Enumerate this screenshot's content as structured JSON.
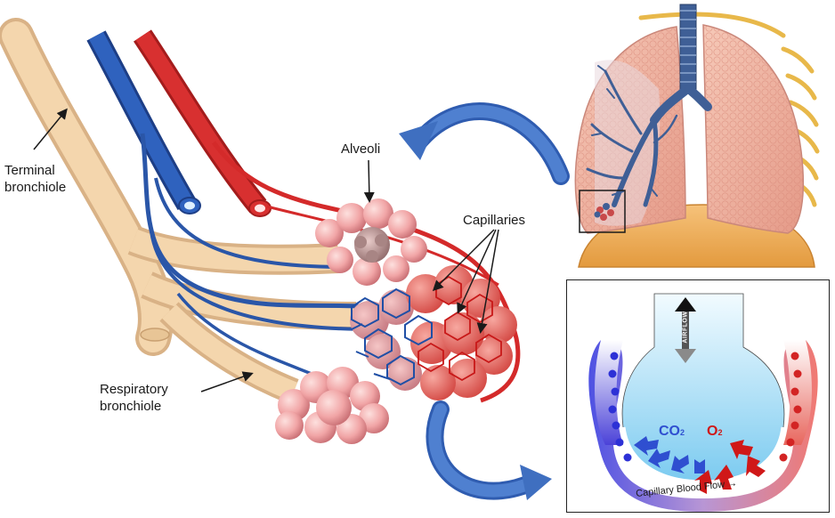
{
  "labels": {
    "terminal_bronchiole": "Terminal\nbronchiole",
    "alveoli": "Alveoli",
    "capillaries": "Capillaries",
    "respiratory_bronchiole": "Respiratory\nbronchiole"
  },
  "inset": {
    "airflow": "AIRFLOW",
    "co2_main": "CO",
    "co2_sub": "2",
    "o2_main": "O",
    "o2_sub": "2",
    "capillary_flow": "Capillary Blood Flow →"
  },
  "colors": {
    "bronchiole": "#f1cfa4",
    "vein": "#2a56a8",
    "artery": "#d42a2a",
    "alveolus": "#f0a6a8",
    "arrow": "#3f6fc0",
    "co2": "#2f4fd0",
    "o2": "#d01818"
  }
}
